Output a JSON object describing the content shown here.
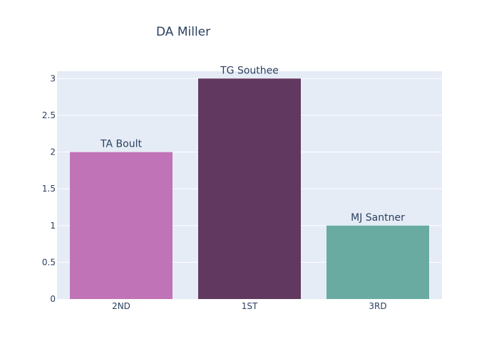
{
  "chart_data": {
    "type": "bar",
    "title": "DA Miller",
    "xlabel": "",
    "ylabel": "",
    "categories": [
      "2ND",
      "1ST",
      "3RD"
    ],
    "values": [
      2,
      3,
      1
    ],
    "bar_labels": [
      "TA Boult",
      "TG Southee",
      "MJ Santner"
    ],
    "bar_colors": [
      "#c073b7",
      "#61385f",
      "#6aaba1"
    ],
    "ylim": [
      0,
      3.1
    ],
    "yticks": [
      0,
      0.5,
      1,
      1.5,
      2,
      2.5,
      3
    ],
    "ytick_labels": [
      "0",
      "0.5",
      "1",
      "1.5",
      "2",
      "2.5",
      "3"
    ],
    "grid": true,
    "legend": "none"
  },
  "theme": {
    "plot_background": "#e5ecf6",
    "grid_color": "#ffffff",
    "text_color": "#2a3f5f"
  }
}
